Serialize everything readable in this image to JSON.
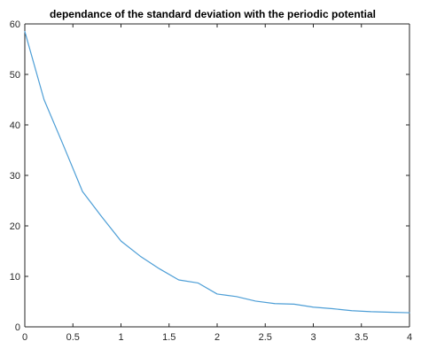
{
  "chart_data": {
    "type": "line",
    "title": "dependance of the standard deviation with the periodic potential",
    "xlabel": "",
    "ylabel": "",
    "xlim": [
      0,
      4
    ],
    "ylim": [
      0,
      60
    ],
    "grid": false,
    "legend": "none",
    "xticks": [
      "0",
      "0.5",
      "1",
      "1.5",
      "2",
      "2.5",
      "3",
      "3.5",
      "4"
    ],
    "yticks": [
      "0",
      "10",
      "20",
      "30",
      "40",
      "50",
      "60"
    ],
    "series": [
      {
        "color": "#4d9ed6",
        "x": [
          0,
          0.2,
          0.4,
          0.6,
          0.8,
          1.0,
          1.2,
          1.4,
          1.6,
          1.8,
          2.0,
          2.2,
          2.4,
          2.6,
          2.8,
          3.0,
          3.2,
          3.4,
          3.6,
          3.8,
          4.0
        ],
        "y": [
          58.5,
          45.0,
          36.0,
          26.8,
          21.8,
          17.0,
          14.0,
          11.5,
          9.3,
          8.7,
          6.5,
          6.0,
          5.1,
          4.6,
          4.5,
          3.9,
          3.6,
          3.2,
          3.0,
          2.9,
          2.8
        ]
      }
    ]
  }
}
